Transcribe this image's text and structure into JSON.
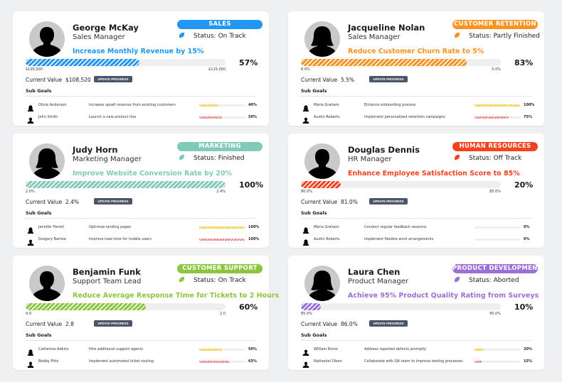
{
  "labels": {
    "current_value": "Current Value",
    "update_button": "UPDATE PROGRESS",
    "sub_goals": "Sub Goals"
  },
  "colors": {
    "subgoal_first": "#f2cf3b",
    "subgoal_second": "#f07f7f",
    "button_bg": "#4a5568",
    "track": "#efefef"
  },
  "cards": [
    {
      "name": "George McKay",
      "role": "Sales Manager",
      "avatar": "male-avatar-icon",
      "department": "SALES",
      "color": "#2196f3",
      "status": "Status: On Track",
      "goal": "Increase Monthly Revenue by 15%",
      "progress_percent": 57,
      "percent_label": "57%",
      "start_value": "$100,000",
      "target_value": "$115,000",
      "current_value": "$108,520",
      "sub_goals": [
        {
          "owner": "Olivia Anderson",
          "avatar": "female-avatar-icon",
          "description": "Increase upsell revenue from existing customers",
          "progress_percent": 40,
          "percent_label": "40%"
        },
        {
          "owner": "John Smith",
          "avatar": "male-avatar-icon",
          "description": "Launch a new product line",
          "progress_percent": 50,
          "percent_label": "50%"
        }
      ]
    },
    {
      "name": "Jacqueline Nolan",
      "role": "Sales Manager",
      "avatar": "female-avatar-icon",
      "department": "CUSTOMER RETENTION",
      "color": "#f7931e",
      "status": "Status: Partly Finished",
      "goal": "Reduce Customer Churn Rate to 5%",
      "progress_percent": 83,
      "percent_label": "83%",
      "start_value": "8.0%",
      "target_value": "5.0%",
      "current_value": "5.5%",
      "sub_goals": [
        {
          "owner": "Maria Graham",
          "avatar": "female-avatar-icon",
          "description": "Enhance onboarding process",
          "progress_percent": 100,
          "percent_label": "100%"
        },
        {
          "owner": "Austin Roberts",
          "avatar": "male-avatar-icon",
          "description": "Implement personalized retention campaigns",
          "progress_percent": 75,
          "percent_label": "75%"
        }
      ]
    },
    {
      "name": "Judy Horn",
      "role": "Marketing Manager",
      "avatar": "female-avatar-icon",
      "department": "MARKETING",
      "color": "#7fcbb8",
      "status": "Status: Finished",
      "goal": "Improve Website Conversion Rate by 20%",
      "progress_percent": 100,
      "percent_label": "100%",
      "start_value": "2.0%",
      "target_value": "2.4%",
      "current_value": "2.4%",
      "sub_goals": [
        {
          "owner": "Jennifer Farrell",
          "avatar": "female-avatar-icon",
          "description": "Optimize landing pages",
          "progress_percent": 100,
          "percent_label": "100%"
        },
        {
          "owner": "Gregory Barlow",
          "avatar": "male-avatar-icon",
          "description": "Improve load time for mobile users",
          "progress_percent": 100,
          "percent_label": "100%"
        }
      ]
    },
    {
      "name": "Douglas Dennis",
      "role": "HR Manager",
      "avatar": "male-avatar-icon",
      "department": "HUMAN RESOURCES",
      "color": "#f4411e",
      "status": "Status: Off Track",
      "goal": "Enhance Employee Satisfaction Score to 85%",
      "progress_percent": 20,
      "percent_label": "20%",
      "start_value": "80.0%",
      "target_value": "85.0%",
      "current_value": "81.0%",
      "sub_goals": [
        {
          "owner": "Maria Graham",
          "avatar": "female-avatar-icon",
          "description": "Conduct regular feedback sessions",
          "progress_percent": 0,
          "percent_label": "0%"
        },
        {
          "owner": "Austin Roberts",
          "avatar": "female-avatar-icon",
          "description": "Implement flexible work arrangements",
          "progress_percent": 0,
          "percent_label": "0%"
        }
      ]
    },
    {
      "name": "Benjamin Funk",
      "role": "Support Team Lead",
      "avatar": "male-avatar-icon",
      "department": "CUSTOMER SUPPORT",
      "color": "#8cc63f",
      "status": "Status: On Track",
      "goal": "Reduce Average Response Time for Tickets to 2 Hours",
      "progress_percent": 60,
      "percent_label": "60%",
      "start_value": "4.0",
      "target_value": "2.0",
      "current_value": "2.8",
      "sub_goals": [
        {
          "owner": "Catherine Adkins",
          "avatar": "female-avatar-icon",
          "description": "Hire additional support agents",
          "progress_percent": 50,
          "percent_label": "50%"
        },
        {
          "owner": "Bobby Pitts",
          "avatar": "male-avatar-icon",
          "description": "Implement automated ticket routing",
          "progress_percent": 65,
          "percent_label": "65%"
        }
      ]
    },
    {
      "name": "Laura Chen",
      "role": "Product Manager",
      "avatar": "female-avatar-icon",
      "department": "PRODUCT DEVELOPMENT",
      "color": "#9a6fd8",
      "status": "Status: Aborted",
      "goal": "Achieve 95% Product Quality Rating from Surveys",
      "progress_percent": 10,
      "percent_label": "10%",
      "start_value": "85.0%",
      "target_value": "95.0%",
      "current_value": "86.0%",
      "sub_goals": [
        {
          "owner": "William Brock",
          "avatar": "male-avatar-icon",
          "description": "Address reported defects promptly",
          "progress_percent": 20,
          "percent_label": "20%"
        },
        {
          "owner": "Nathaniel Olson",
          "avatar": "male-avatar-icon",
          "description": "Collaborate with QA team to improve testing processes",
          "progress_percent": 15,
          "percent_label": "15%"
        }
      ]
    }
  ]
}
